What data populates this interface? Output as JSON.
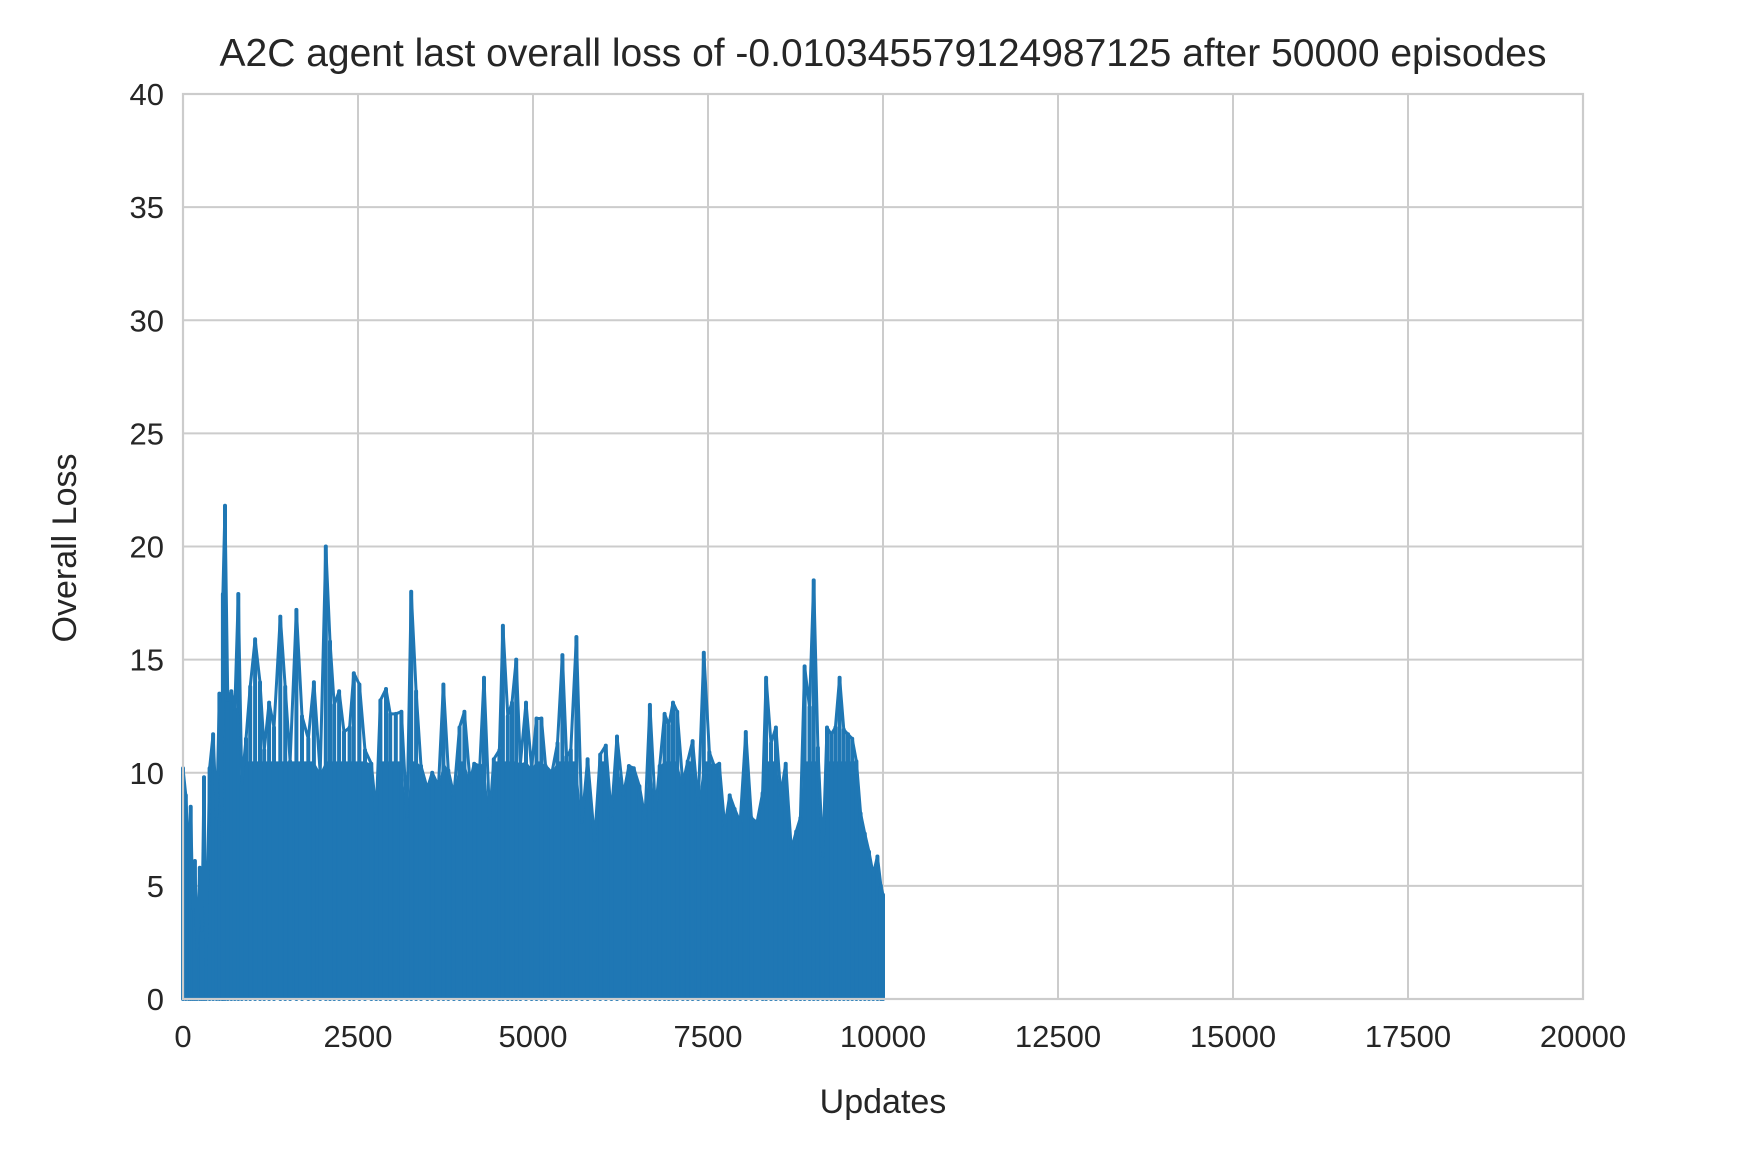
{
  "chart_data": {
    "type": "line",
    "title": "A2C agent last overall loss of -0.010345579124987125 after 50000 episodes",
    "xlabel": "Updates",
    "ylabel": "Overall Loss",
    "xlim": [
      0,
      20000
    ],
    "ylim": [
      0,
      40
    ],
    "xticks": [
      0,
      2500,
      5000,
      7500,
      10000,
      12500,
      15000,
      17500,
      20000
    ],
    "xtick_labels": [
      "0",
      "2500",
      "5000",
      "7500",
      "10000",
      "12500",
      "15000",
      "17500",
      "20000"
    ],
    "yticks": [
      0,
      5,
      10,
      15,
      20,
      25,
      30,
      35,
      40
    ],
    "ytick_labels": [
      "0",
      "5",
      "10",
      "15",
      "20",
      "25",
      "30",
      "35",
      "40"
    ],
    "grid": true,
    "colors": {
      "series": "#1f77b4",
      "grid": "#cccccc",
      "text": "#262626"
    },
    "series": [
      {
        "x_range": [
          0,
          10000
        ],
        "points_estimated": [
          [
            0,
            10.2
          ],
          [
            40,
            9.0
          ],
          [
            80,
            6.2
          ],
          [
            110,
            8.5
          ],
          [
            140,
            4.0
          ],
          [
            170,
            6.1
          ],
          [
            200,
            2.2
          ],
          [
            240,
            5.8
          ],
          [
            270,
            3.0
          ],
          [
            300,
            9.8
          ],
          [
            330,
            1.5
          ],
          [
            380,
            10.2
          ],
          [
            430,
            11.7
          ],
          [
            480,
            8.0
          ],
          [
            520,
            13.5
          ],
          [
            560,
            7.0
          ],
          [
            570,
            17.9
          ],
          [
            600,
            21.8
          ],
          [
            640,
            13.2
          ],
          [
            690,
            13.6
          ],
          [
            740,
            12.8
          ],
          [
            790,
            17.9
          ],
          [
            840,
            9.5
          ],
          [
            900,
            11.5
          ],
          [
            960,
            13.8
          ],
          [
            1030,
            15.9
          ],
          [
            1100,
            14.0
          ],
          [
            1160,
            11.0
          ],
          [
            1230,
            13.1
          ],
          [
            1300,
            12.0
          ],
          [
            1390,
            16.9
          ],
          [
            1460,
            13.8
          ],
          [
            1530,
            10.5
          ],
          [
            1620,
            17.2
          ],
          [
            1700,
            12.5
          ],
          [
            1790,
            11.5
          ],
          [
            1870,
            14.0
          ],
          [
            1960,
            10.0
          ],
          [
            2040,
            20.0
          ],
          [
            2100,
            15.8
          ],
          [
            2160,
            13.0
          ],
          [
            2230,
            13.6
          ],
          [
            2300,
            11.8
          ],
          [
            2380,
            12.0
          ],
          [
            2440,
            14.4
          ],
          [
            2520,
            13.9
          ],
          [
            2600,
            11.0
          ],
          [
            2690,
            10.4
          ],
          [
            2760,
            8.2
          ],
          [
            2820,
            13.2
          ],
          [
            2900,
            13.7
          ],
          [
            2960,
            12.6
          ],
          [
            3040,
            12.6
          ],
          [
            3120,
            12.7
          ],
          [
            3200,
            8.0
          ],
          [
            3260,
            18.0
          ],
          [
            3330,
            13.6
          ],
          [
            3400,
            10.3
          ],
          [
            3490,
            9.3
          ],
          [
            3560,
            10.0
          ],
          [
            3650,
            9.4
          ],
          [
            3720,
            13.9
          ],
          [
            3790,
            10.1
          ],
          [
            3870,
            9.0
          ],
          [
            3950,
            12.0
          ],
          [
            4020,
            12.7
          ],
          [
            4100,
            9.6
          ],
          [
            4160,
            10.4
          ],
          [
            4240,
            10.3
          ],
          [
            4300,
            14.2
          ],
          [
            4380,
            8.0
          ],
          [
            4440,
            10.6
          ],
          [
            4520,
            11.0
          ],
          [
            4570,
            16.5
          ],
          [
            4640,
            12.5
          ],
          [
            4700,
            13.1
          ],
          [
            4760,
            15.0
          ],
          [
            4820,
            10.4
          ],
          [
            4900,
            13.1
          ],
          [
            4980,
            10.2
          ],
          [
            5050,
            12.4
          ],
          [
            5120,
            12.4
          ],
          [
            5180,
            10.3
          ],
          [
            5270,
            10.0
          ],
          [
            5350,
            11.3
          ],
          [
            5420,
            15.2
          ],
          [
            5480,
            10.7
          ],
          [
            5540,
            11.0
          ],
          [
            5620,
            16.0
          ],
          [
            5700,
            7.8
          ],
          [
            5780,
            10.6
          ],
          [
            5880,
            7.0
          ],
          [
            5960,
            10.8
          ],
          [
            6040,
            11.2
          ],
          [
            6120,
            8.1
          ],
          [
            6200,
            11.6
          ],
          [
            6290,
            9.0
          ],
          [
            6370,
            10.3
          ],
          [
            6440,
            10.2
          ],
          [
            6520,
            9.4
          ],
          [
            6600,
            8.0
          ],
          [
            6670,
            13.0
          ],
          [
            6750,
            8.3
          ],
          [
            6810,
            10.3
          ],
          [
            6880,
            12.6
          ],
          [
            6940,
            12.1
          ],
          [
            7000,
            13.1
          ],
          [
            7060,
            12.7
          ],
          [
            7140,
            9.5
          ],
          [
            7210,
            10.5
          ],
          [
            7280,
            11.4
          ],
          [
            7360,
            8.6
          ],
          [
            7440,
            15.3
          ],
          [
            7520,
            10.9
          ],
          [
            7590,
            10.3
          ],
          [
            7660,
            10.4
          ],
          [
            7740,
            7.6
          ],
          [
            7810,
            9.0
          ],
          [
            7880,
            8.4
          ],
          [
            7960,
            7.8
          ],
          [
            8040,
            11.8
          ],
          [
            8120,
            8.0
          ],
          [
            8200,
            7.8
          ],
          [
            8280,
            9.1
          ],
          [
            8330,
            14.2
          ],
          [
            8400,
            11.3
          ],
          [
            8470,
            12.0
          ],
          [
            8540,
            9.0
          ],
          [
            8610,
            10.4
          ],
          [
            8690,
            6.6
          ],
          [
            8760,
            7.4
          ],
          [
            8820,
            8.0
          ],
          [
            8880,
            14.7
          ],
          [
            8950,
            12.9
          ],
          [
            9010,
            18.5
          ],
          [
            9070,
            11.1
          ],
          [
            9140,
            6.3
          ],
          [
            9200,
            12.0
          ],
          [
            9260,
            11.7
          ],
          [
            9320,
            12.0
          ],
          [
            9380,
            14.2
          ],
          [
            9440,
            11.9
          ],
          [
            9500,
            11.7
          ],
          [
            9560,
            11.5
          ],
          [
            9620,
            10.5
          ],
          [
            9680,
            8.2
          ],
          [
            9740,
            7.3
          ],
          [
            9800,
            6.5
          ],
          [
            9860,
            5.5
          ],
          [
            9920,
            6.3
          ],
          [
            9970,
            5.0
          ],
          [
            10000,
            4.6
          ]
        ]
      }
    ]
  }
}
